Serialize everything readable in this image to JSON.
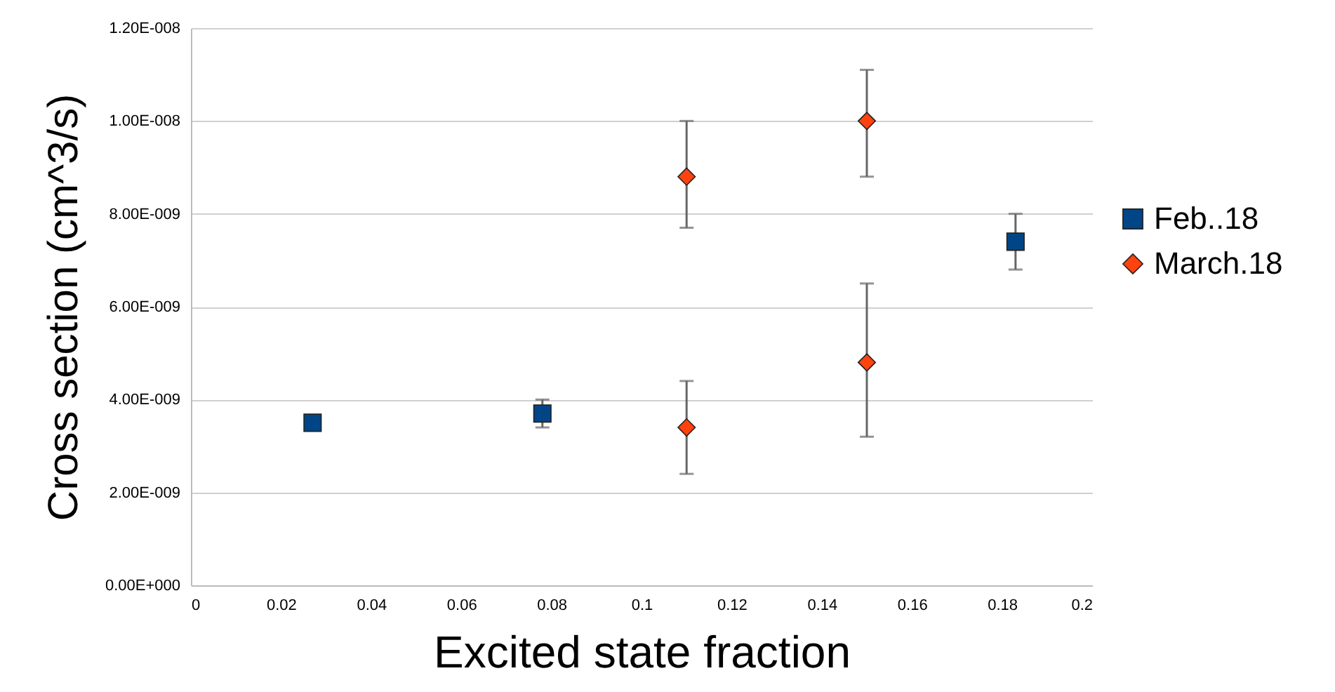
{
  "chart_data": {
    "type": "scatter",
    "xlabel": "Excited state fraction",
    "ylabel": "Cross section (cm^3/s)",
    "series": [
      {
        "name": "Feb..18",
        "color": "#004586",
        "marker": "square",
        "x": [
          0.027,
          0.078,
          0.183
        ],
        "values": [
          3.5e-09,
          3.7e-09,
          7.4e-09
        ],
        "errors": [
          null,
          [
            3.4e-09,
            4e-09
          ],
          [
            6.8e-09,
            8e-09
          ]
        ]
      },
      {
        "name": "March.18",
        "color": "#ff420e",
        "marker": "diamond",
        "x": [
          0.11,
          0.11,
          0.15,
          0.15
        ],
        "values": [
          8.8e-09,
          3.4e-09,
          1e-08,
          4.8e-09
        ],
        "errors": [
          [
            7.7e-09,
            1e-08
          ],
          [
            2.4e-09,
            4.4e-09
          ],
          [
            8.8e-09,
            1.11e-08
          ],
          [
            3.2e-09,
            6.5e-09
          ]
        ]
      }
    ],
    "xlim": [
      0,
      0.2
    ],
    "xticks": [
      0,
      0.02,
      0.04,
      0.06,
      0.08,
      0.1,
      0.12,
      0.14,
      0.16,
      0.18,
      0.2
    ],
    "ylim": [
      0,
      1.2e-08
    ],
    "yticks": [
      {
        "value": 0,
        "label": "0.00E+000"
      },
      {
        "value": 2e-09,
        "label": "2.00E-009"
      },
      {
        "value": 4e-09,
        "label": "4.00E-009"
      },
      {
        "value": 6e-09,
        "label": "6.00E-009"
      },
      {
        "value": 8e-09,
        "label": "8.00E-009"
      },
      {
        "value": 1e-08,
        "label": "1.00E-008"
      },
      {
        "value": 1.2e-08,
        "label": "1.20E-008"
      }
    ],
    "grid": "y",
    "legend": "right"
  }
}
